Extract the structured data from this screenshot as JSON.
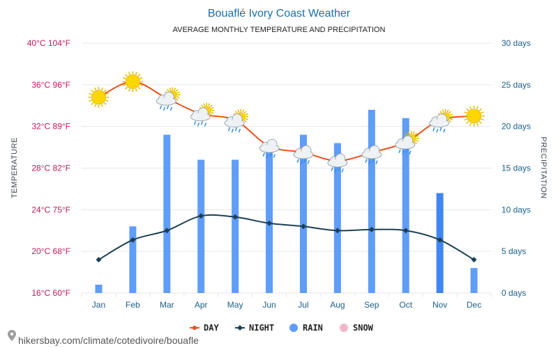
{
  "colors": {
    "day": "#e8501e",
    "night": "#1c3f55",
    "rain": "#5f9df7",
    "rain_dark": "#3f86f2",
    "snow": "#f4b6c8",
    "grid": "#e6e6e6",
    "left_axis": "#c2185b",
    "right_axis": "#1a5f8a"
  },
  "chart_data": {
    "type": "line+bar",
    "title": "Bouaflé Ivory Coast Weather",
    "subtitle": "AVERAGE MONTHLY TEMPERATURE AND PRECIPITATION",
    "y_left_label": "TEMPERATURE",
    "y_right_label": "PRECIPITATION",
    "categories": [
      "Jan",
      "Feb",
      "Mar",
      "Apr",
      "May",
      "Jun",
      "Jul",
      "Aug",
      "Sep",
      "Oct",
      "Nov",
      "Dec"
    ],
    "y_left_ticks": [
      "16°C 60°F",
      "20°C 68°F",
      "24°C 75°F",
      "28°C 82°F",
      "32°C 89°F",
      "36°C 96°F",
      "40°C 104°F"
    ],
    "y_left_range": [
      16,
      40
    ],
    "y_right_ticks": [
      "0 days",
      "5 days",
      "10 days",
      "15 days",
      "20 days",
      "25 days",
      "30 days"
    ],
    "y_right_range": [
      0,
      30
    ],
    "series": [
      {
        "name": "DAY",
        "type": "line",
        "unit": "°C",
        "values": [
          34.8,
          36.3,
          34.7,
          33.2,
          32.6,
          30.1,
          29.5,
          28.7,
          29.5,
          30.5,
          32.6,
          33.0
        ]
      },
      {
        "name": "NIGHT",
        "type": "line",
        "unit": "°C",
        "values": [
          19.2,
          21.1,
          22.0,
          23.4,
          23.3,
          22.7,
          22.4,
          22.0,
          22.1,
          22.0,
          21.1,
          19.2
        ]
      },
      {
        "name": "RAIN",
        "type": "bar",
        "unit": "days",
        "values": [
          1,
          8,
          19,
          16,
          16,
          17,
          19,
          18,
          22,
          21,
          12,
          3
        ]
      },
      {
        "name": "SNOW",
        "type": "bar",
        "unit": "days",
        "values": [
          0,
          0,
          0,
          0,
          0,
          0,
          0,
          0,
          0,
          0,
          0,
          0
        ]
      }
    ],
    "weather_icons": [
      "sun",
      "sun",
      "partly-cloudy-rain",
      "partly-cloudy-rain",
      "partly-cloudy-rain",
      "rain-cloud",
      "rain-cloud",
      "rain-cloud",
      "rain-cloud",
      "partly-cloudy-rain",
      "partly-cloudy-rain",
      "sun"
    ],
    "legend_position": "bottom",
    "grid": true
  },
  "legend": [
    {
      "label": "DAY",
      "icon": "line-dot-icon"
    },
    {
      "label": "NIGHT",
      "icon": "line-diamond-icon"
    },
    {
      "label": "RAIN",
      "icon": "circle-icon"
    },
    {
      "label": "SNOW",
      "icon": "circle-icon"
    }
  ],
  "source": {
    "text": "hikersbay.com/climate/cotedivoire/bouafle",
    "icon": "location-pin-icon"
  }
}
